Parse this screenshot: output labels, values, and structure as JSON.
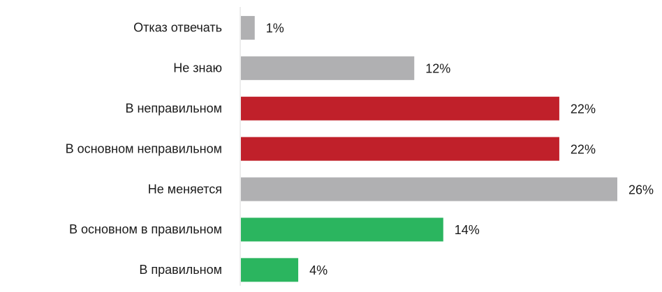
{
  "chart_data": {
    "type": "bar",
    "orientation": "horizontal",
    "categories": [
      "Отказ отвечать",
      "Не знаю",
      "В неправильном",
      "В основном неправильном",
      "Не меняется",
      "В основном в правильном",
      "В правильном"
    ],
    "values": [
      1,
      12,
      22,
      22,
      26,
      14,
      4
    ],
    "value_labels": [
      "1%",
      "12%",
      "22%",
      "22%",
      "26%",
      "14%",
      "4%"
    ],
    "colors": [
      "#b0b0b2",
      "#b0b0b2",
      "#c0202a",
      "#c0202a",
      "#b0b0b2",
      "#2bb55f",
      "#2bb55f"
    ]
  }
}
